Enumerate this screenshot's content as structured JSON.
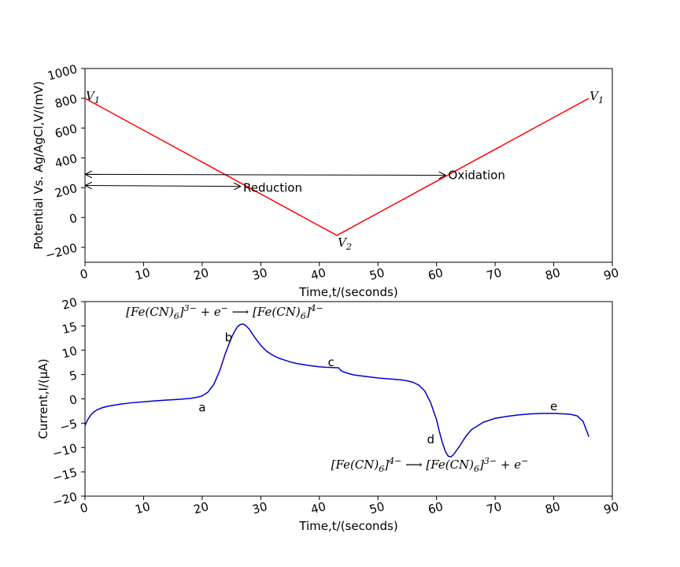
{
  "chart_data": [
    {
      "type": "line",
      "xlabel": "Time,t/(seconds)",
      "ylabel": "Potential Vs. Ag/AgCl,V/(mV)",
      "xlim": [
        0,
        90
      ],
      "ylim": [
        -300,
        1000
      ],
      "xticks": [
        0,
        10,
        20,
        30,
        40,
        50,
        60,
        70,
        80,
        90
      ],
      "yticks": [
        -200,
        0,
        200,
        400,
        600,
        800,
        1000
      ],
      "grid": false,
      "series": [
        {
          "color": "#ff0000",
          "x": [
            0,
            43,
            86
          ],
          "y": [
            800,
            -120,
            800
          ]
        }
      ],
      "point_labels": [
        {
          "text": "V",
          "sub": "1",
          "x": 0,
          "y": 800
        },
        {
          "text": "V",
          "sub": "2",
          "x": 43,
          "y": -120
        },
        {
          "text": "V",
          "sub": "1",
          "x": 86,
          "y": 800
        }
      ],
      "annotations": [
        {
          "text": "Reduction",
          "text_x": 27,
          "text_y": 225,
          "arrow_to_x": 0,
          "arrow_to_y": 215
        },
        {
          "text": "Oxidation",
          "text_x": 62,
          "text_y": 310,
          "arrow_to_x": 0,
          "arrow_to_y": 290
        }
      ]
    },
    {
      "type": "line",
      "xlabel": "Time,t/(seconds)",
      "ylabel": "Current,I/(μA)",
      "xlim": [
        0,
        90
      ],
      "ylim": [
        -20,
        20
      ],
      "xticks": [
        0,
        10,
        20,
        30,
        40,
        50,
        60,
        70,
        80,
        90
      ],
      "yticks": [
        -20,
        -15,
        -10,
        -5,
        0,
        5,
        10,
        15,
        20
      ],
      "grid": false,
      "series": [
        {
          "color": "#0000cc",
          "x": [
            0,
            0.5,
            1,
            1.5,
            2,
            3,
            4,
            6,
            8,
            10,
            12,
            14,
            16,
            18,
            19,
            20,
            21,
            22,
            23,
            24,
            25,
            25.5,
            26,
            26.5,
            27,
            27.5,
            28,
            29,
            30,
            31,
            32,
            33,
            34,
            35,
            36,
            37,
            38,
            39,
            40,
            41,
            42,
            43,
            43.3,
            43.6,
            44,
            45,
            46,
            48,
            50,
            52,
            54,
            55,
            56,
            57,
            58,
            59,
            60,
            60.5,
            61,
            61.5,
            62,
            62.5,
            63,
            64,
            65,
            66,
            68,
            70,
            72,
            74,
            76,
            78,
            80,
            82,
            83,
            84,
            85,
            86
          ],
          "y": [
            -5.5,
            -4.2,
            -3.3,
            -2.7,
            -2.3,
            -1.8,
            -1.5,
            -1.1,
            -0.8,
            -0.6,
            -0.4,
            -0.25,
            -0.1,
            0.1,
            0.3,
            0.6,
            1.4,
            3.0,
            5.8,
            9.5,
            12.6,
            13.8,
            14.8,
            15.3,
            15.4,
            15.0,
            14.4,
            12.6,
            11.0,
            9.8,
            9.0,
            8.4,
            8.0,
            7.6,
            7.3,
            7.1,
            6.9,
            6.75,
            6.6,
            6.5,
            6.45,
            6.4,
            6.4,
            5.9,
            5.6,
            5.2,
            4.9,
            4.6,
            4.3,
            4.1,
            3.9,
            3.7,
            3.4,
            2.8,
            1.6,
            -0.8,
            -4.3,
            -6.8,
            -9.0,
            -10.8,
            -11.8,
            -11.9,
            -11.3,
            -9.6,
            -7.7,
            -6.3,
            -4.8,
            -4.0,
            -3.6,
            -3.3,
            -3.1,
            -3.0,
            -3.0,
            -3.1,
            -3.2,
            -3.5,
            -4.6,
            -7.8
          ]
        }
      ],
      "annotations": [
        {
          "text": "a",
          "x": 20,
          "y": -1.8
        },
        {
          "text": "b",
          "x": 24.5,
          "y": 12.6
        },
        {
          "text": "c",
          "x": 42,
          "y": 7.5
        },
        {
          "text": "d",
          "x": 59,
          "y": -8.3
        },
        {
          "text": "e",
          "x": 80,
          "y": -1.5
        }
      ],
      "equations": [
        {
          "id": "reduction",
          "x": 7,
          "y": 17.1,
          "segments": [
            "[Fe(CN)",
            "6",
            "]",
            "3−",
            " + e",
            "−",
            " ⟶ [Fe(CN)",
            "6",
            "]",
            "4−"
          ]
        },
        {
          "id": "oxidation",
          "x": 42,
          "y": -14.3,
          "segments": [
            "[Fe(CN)",
            "6",
            "]",
            "4−",
            " ⟶ [Fe(CN)",
            "6",
            "]",
            "3−",
            " + e",
            "−"
          ]
        }
      ]
    }
  ]
}
